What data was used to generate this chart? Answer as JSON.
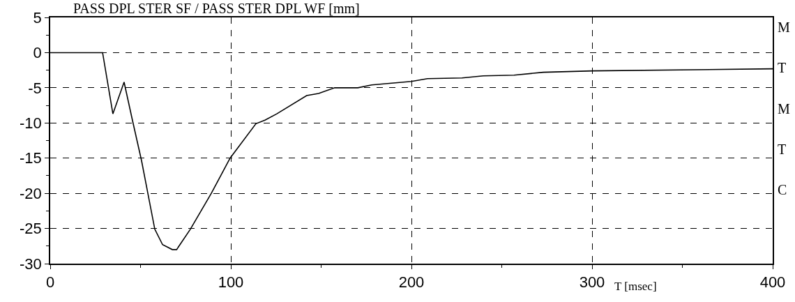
{
  "chart_data": {
    "type": "line",
    "title": "PASS DPL STER SF / PASS STER DPL WF [mm]",
    "xlabel": "T [msec]",
    "annotations": [
      "M",
      "T",
      "M",
      "T",
      "C"
    ],
    "series": [
      {
        "color": "#000000",
        "x": [
          0,
          29,
          34.7,
          40.9,
          45.6,
          50.6,
          57.9,
          62.2,
          67.6,
          70,
          77.6,
          89.2,
          99.6,
          113.9,
          118.9,
          125.5,
          142,
          148.6,
          157.5,
          170.3,
          178,
          200,
          208.9,
          228,
          239.8,
          256.8,
          273,
          300.4,
          400
        ],
        "values": [
          0,
          0,
          -8.7,
          -4.2,
          -9.7,
          -15.4,
          -25.1,
          -27.3,
          -28,
          -28,
          -25.1,
          -20,
          -15,
          -10.1,
          -9.6,
          -8.7,
          -6.1,
          -5.8,
          -5.0,
          -5.0,
          -4.6,
          -4.1,
          -3.7,
          -3.6,
          -3.3,
          -3.2,
          -2.8,
          -2.6,
          -2.3
        ]
      }
    ],
    "xlim": [
      0,
      400
    ],
    "xticks": [
      0,
      {
        "value": 50,
        "label": null
      },
      100,
      {
        "value": 150,
        "label": null
      },
      200,
      {
        "value": 250,
        "label": null
      },
      300,
      {
        "value": 350,
        "label": null
      },
      400
    ],
    "ylim": [
      -30,
      5
    ],
    "yticks": [
      -30,
      {
        "value": -27.5,
        "label": null
      },
      -25,
      {
        "value": -22.5,
        "label": null
      },
      -20,
      {
        "value": -17.5,
        "label": null
      },
      -15,
      {
        "value": -12.5,
        "label": null
      },
      -10,
      {
        "value": -7.5,
        "label": null
      },
      -5,
      {
        "value": -2.5,
        "label": null
      },
      0,
      {
        "value": 2.5,
        "label": null
      },
      5
    ],
    "grid": true,
    "legend": false,
    "marker": "none",
    "line_style": "solid"
  }
}
